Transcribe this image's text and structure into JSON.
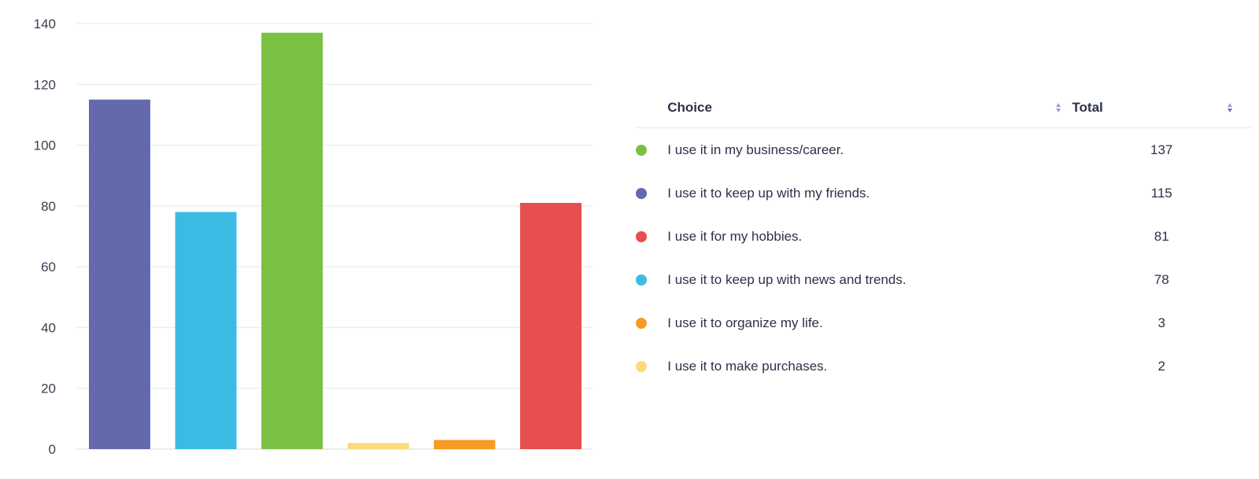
{
  "chart_data": {
    "type": "bar",
    "categories": [
      "I use it to keep up with my friends.",
      "I use it to keep up with news and trends.",
      "I use it in my business/career.",
      "I use it to make purchases.",
      "I use it to organize my life.",
      "I use it for my hobbies."
    ],
    "values": [
      115,
      78,
      137,
      2,
      3,
      81
    ],
    "colors": [
      "#6469ae",
      "#3bbbe4",
      "#7ac043",
      "#fcda7a",
      "#f69a22",
      "#e74e4e"
    ],
    "ylim": [
      0,
      140
    ],
    "yticks": [
      0,
      20,
      40,
      60,
      80,
      100,
      120,
      140
    ],
    "grid": true,
    "title": "",
    "xlabel": "",
    "ylabel": ""
  },
  "table": {
    "headers": {
      "choice": "Choice",
      "total": "Total"
    },
    "rows": [
      {
        "choice": "I use it in my business/career.",
        "total": "137",
        "color": "#7ac043"
      },
      {
        "choice": "I use it to keep up with my friends.",
        "total": "115",
        "color": "#6469ae"
      },
      {
        "choice": "I use it for my hobbies.",
        "total": "81",
        "color": "#e74e4e"
      },
      {
        "choice": "I use it to keep up with news and trends.",
        "total": "78",
        "color": "#3bbbe4"
      },
      {
        "choice": "I use it to organize my life.",
        "total": "3",
        "color": "#f69a22"
      },
      {
        "choice": "I use it to make purchases.",
        "total": "2",
        "color": "#fcda7a"
      }
    ]
  }
}
